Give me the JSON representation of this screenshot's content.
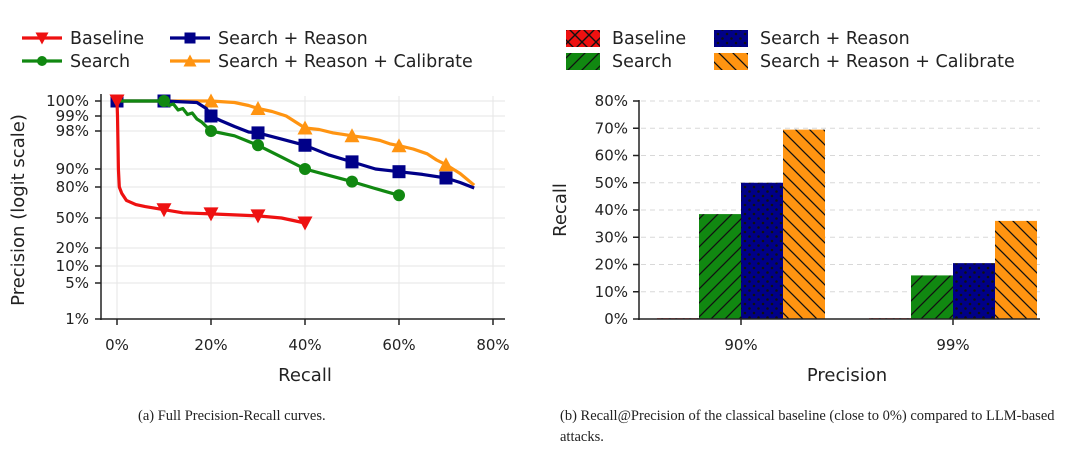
{
  "chart_data": [
    {
      "id": "a",
      "type": "line",
      "title": "",
      "xlabel": "Recall",
      "ylabel": "Precision (logit scale)",
      "xlim": [
        0,
        80
      ],
      "yscale": "logit",
      "ylim": [
        1,
        100
      ],
      "xticks": [
        "0%",
        "20%",
        "40%",
        "60%",
        "80%"
      ],
      "xtick_values": [
        0,
        20,
        40,
        60,
        80
      ],
      "yticks": [
        "100%",
        "99%",
        "98%",
        "90%",
        "80%",
        "50%",
        "20%",
        "10%",
        "5%",
        "1%"
      ],
      "ytick_values": [
        100,
        99,
        98,
        90,
        80,
        50,
        20,
        10,
        5,
        1
      ],
      "grid": true,
      "legend_position": "top",
      "series": [
        {
          "name": "Baseline",
          "color": "#ee1111",
          "marker": "triangle-down",
          "x": [
            0,
            0.1,
            0.3,
            0.5,
            1,
            2,
            4,
            6,
            10,
            14,
            20,
            25,
            30,
            35,
            40
          ],
          "y": [
            100,
            99,
            90,
            80,
            74,
            67,
            63,
            61,
            58,
            55,
            54,
            53,
            52,
            50,
            45
          ],
          "marker_x": [
            0,
            10,
            20,
            30,
            40
          ],
          "marker_y": [
            100,
            58,
            54,
            52,
            45
          ]
        },
        {
          "name": "Search",
          "color": "#118811",
          "marker": "circle",
          "x": [
            0,
            10,
            11,
            12,
            13,
            14,
            15,
            16,
            17,
            18,
            19,
            20,
            25,
            30,
            35,
            40,
            45,
            50,
            55,
            60
          ],
          "y": [
            100,
            100,
            99.7,
            99.8,
            99.4,
            99.5,
            99.1,
            99.2,
            98.8,
            98.6,
            98.3,
            98.0,
            97.0,
            95.0,
            92.5,
            90.0,
            86.5,
            83.0,
            78.5,
            72.0
          ],
          "marker_x": [
            10,
            20,
            30,
            40,
            50,
            60
          ],
          "marker_y": [
            100,
            98.0,
            95.0,
            90.0,
            83.0,
            72.0
          ]
        },
        {
          "name": "Search + Reason",
          "color": "#000088",
          "marker": "square",
          "x": [
            0,
            10,
            17,
            18,
            19,
            20,
            22,
            25,
            28,
            30,
            35,
            40,
            45,
            50,
            55,
            60,
            65,
            70,
            73,
            76
          ],
          "y": [
            100,
            100,
            99.9,
            99.7,
            99.5,
            99.0,
            98.7,
            98.3,
            97.8,
            97.6,
            96.3,
            95.0,
            93.0,
            91.5,
            90.0,
            88.5,
            87.0,
            85.0,
            82.5,
            79.0
          ],
          "marker_x": [
            0,
            10,
            20,
            30,
            40,
            50,
            60,
            70
          ],
          "marker_y": [
            100,
            100,
            99.0,
            97.6,
            95.0,
            91.5,
            88.5,
            85.0
          ]
        },
        {
          "name": "Search + Reason + Calibrate",
          "color": "#ff9411",
          "marker": "triangle-up",
          "x": [
            0,
            20,
            25,
            28,
            30,
            33,
            36,
            38,
            40,
            43,
            46,
            48,
            50,
            53,
            56,
            58,
            60,
            63,
            66,
            68,
            70,
            73,
            76
          ],
          "y": [
            100,
            100,
            99.9,
            99.7,
            99.5,
            99.3,
            99.0,
            98.6,
            98.2,
            98.1,
            97.6,
            97.3,
            97.0,
            96.6,
            96.0,
            95.3,
            94.9,
            94.2,
            93.2,
            91.9,
            90.9,
            87.5,
            81.0
          ],
          "marker_x": [
            20,
            30,
            40,
            50,
            60,
            70
          ],
          "marker_y": [
            100,
            99.5,
            98.2,
            97.0,
            94.9,
            90.9
          ]
        }
      ]
    },
    {
      "id": "b",
      "type": "bar",
      "title": "",
      "xlabel": "Precision",
      "ylabel": "Recall",
      "categories": [
        "90%",
        "99%"
      ],
      "ylim": [
        0,
        80
      ],
      "yticks": [
        "0%",
        "10%",
        "20%",
        "30%",
        "40%",
        "50%",
        "60%",
        "70%",
        "80%"
      ],
      "ytick_values": [
        0,
        10,
        20,
        30,
        40,
        50,
        60,
        70,
        80
      ],
      "grid": true,
      "legend_position": "top",
      "series": [
        {
          "name": "Baseline",
          "color": "#ee1111",
          "hatch": "cross",
          "values": [
            0,
            0
          ]
        },
        {
          "name": "Search",
          "color": "#118811",
          "hatch": "slash",
          "values": [
            38.5,
            16
          ]
        },
        {
          "name": "Search + Reason",
          "color": "#000088",
          "hatch": "dots",
          "values": [
            50,
            20.5
          ]
        },
        {
          "name": "Search + Reason + Calibrate",
          "color": "#ff9411",
          "hatch": "backslash",
          "values": [
            69.5,
            36
          ]
        }
      ]
    }
  ],
  "captions": {
    "a": "(a) Full Precision-Recall curves.",
    "b": "(b) Recall@Precision of the classical baseline (close to 0%) compared to LLM-based attacks."
  }
}
